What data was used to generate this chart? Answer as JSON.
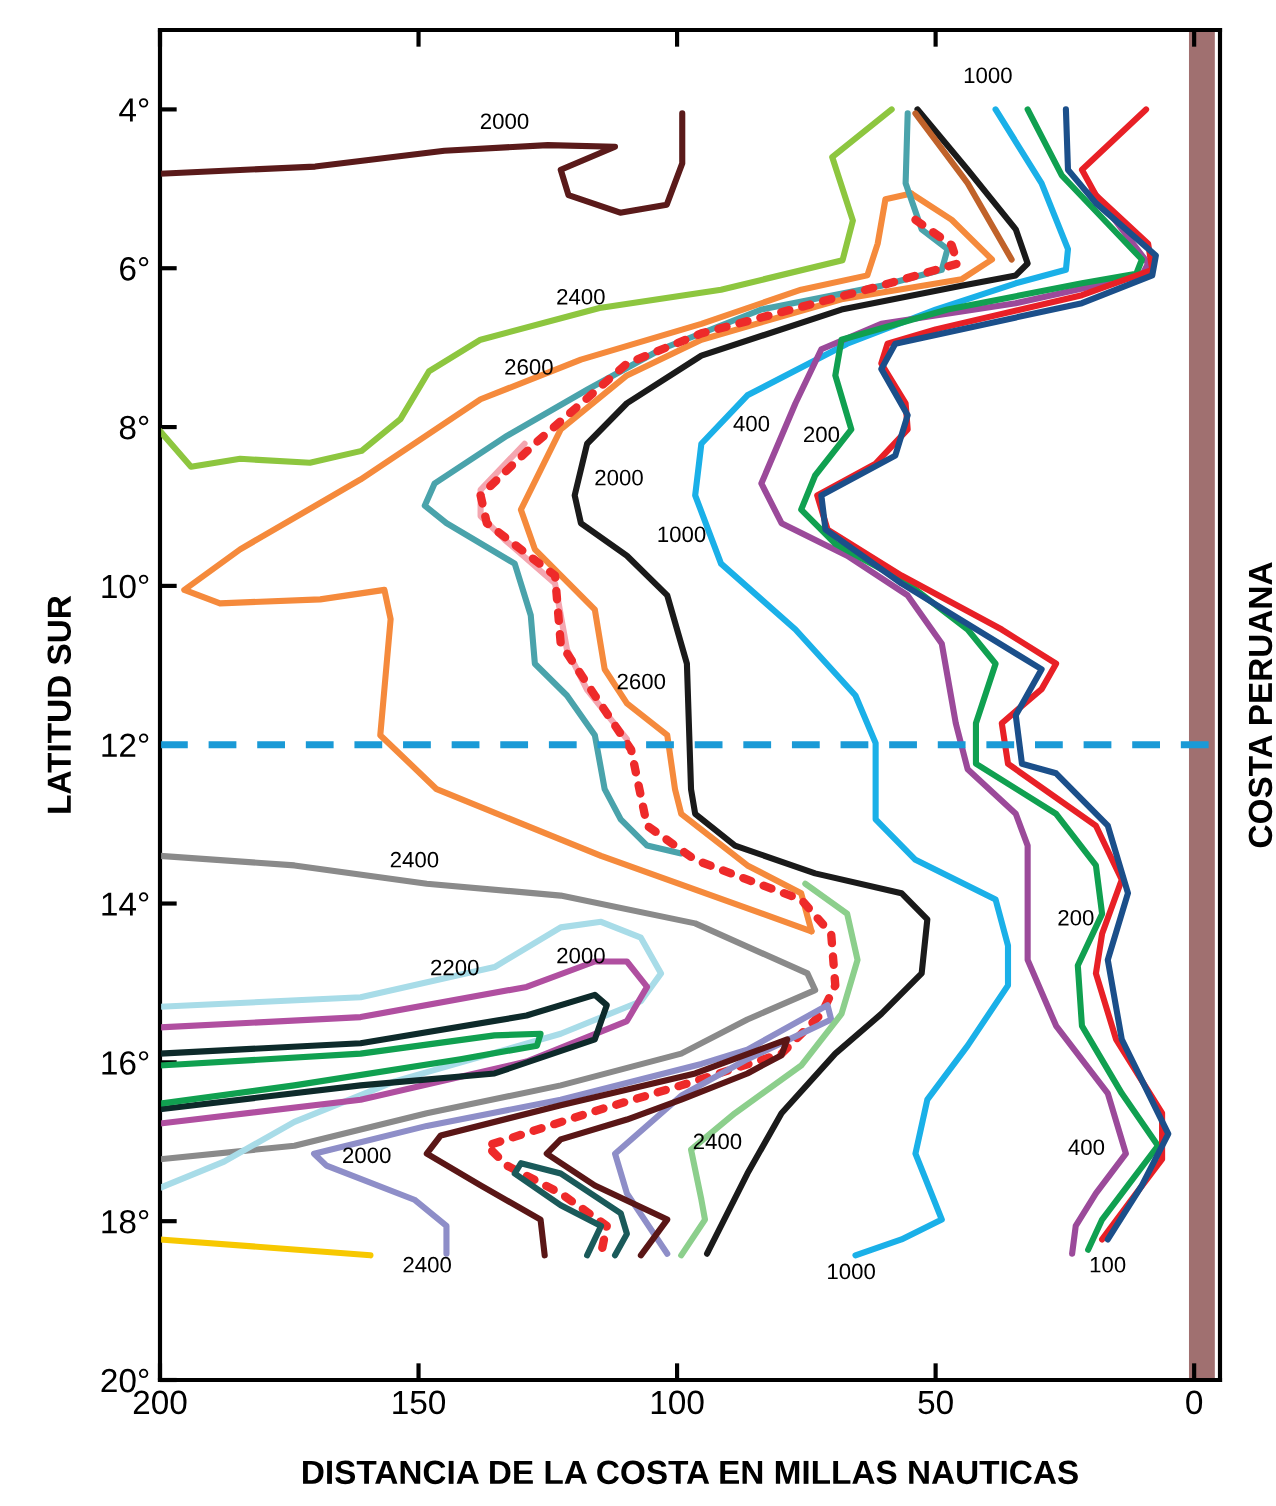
{
  "chart_data": {
    "type": "line",
    "xlabel": "DISTANCIA DE LA COSTA EN MILLAS NAUTICAS",
    "ylabel": "LATITUD SUR",
    "y2label": "COSTA PERUANA",
    "xlim": [
      200,
      -5
    ],
    "ylim": [
      20,
      3
    ],
    "xticks": [
      200,
      150,
      100,
      50,
      0
    ],
    "yticks": [
      {
        "value": 4,
        "label": "4°"
      },
      {
        "value": 6,
        "label": "6°"
      },
      {
        "value": 8,
        "label": "8°"
      },
      {
        "value": 10,
        "label": "10°"
      },
      {
        "value": 12,
        "label": "12°"
      },
      {
        "value": 14,
        "label": "14°"
      },
      {
        "value": 16,
        "label": "16°"
      },
      {
        "value": 18,
        "label": "18°"
      },
      {
        "value": 20,
        "label": "20°"
      }
    ],
    "grid": false,
    "legend": false,
    "bands": [
      {
        "axis": "x",
        "from": 1,
        "to": -4,
        "color": "#a07070"
      }
    ],
    "ref_lines": [
      {
        "axis": "y",
        "value": 12,
        "color": "#1a9ad6",
        "line_style": "dashed"
      }
    ],
    "series": [
      {
        "color": "#5a1a1a",
        "x": [
          200,
          170,
          145,
          125,
          112,
          122.5,
          121,
          111,
          102,
          99,
          99
        ],
        "values": [
          4.81,
          4.72,
          4.52,
          4.45,
          4.47,
          4.76,
          5.08,
          5.3,
          5.2,
          4.68,
          4.05
        ]
      },
      {
        "color": "#8dc63f",
        "x": [
          200,
          194,
          184.5,
          171,
          161,
          153.5,
          148,
          138,
          115,
          91.5,
          68,
          66,
          70,
          58.5
        ],
        "values": [
          8.05,
          8.5,
          8.4,
          8.45,
          8.3,
          7.9,
          7.3,
          6.9,
          6.5,
          6.27,
          5.9,
          5.4,
          4.6,
          4.0
        ]
      },
      {
        "color": "#f58a3c",
        "x": [
          74.0,
          76.0,
          86.4,
          99.2,
          100.4,
          101.9,
          109.7,
          114.0,
          115.9,
          127.5,
          130.2,
          122.5,
          109.7,
          95.3,
          68.2,
          45.0,
          39.1,
          46.9,
          54.7
        ],
        "values": [
          14.35,
          13.87,
          13.52,
          12.87,
          12.56,
          11.88,
          11.48,
          11.05,
          10.3,
          9.54,
          9.04,
          8.03,
          7.35,
          6.9,
          6.39,
          6.14,
          5.89,
          5.39,
          5.06
        ]
      },
      {
        "color": "#f58a3c",
        "x": [
          54.7,
          59.7,
          61.2,
          63.2,
          76.0,
          95.3,
          118.6,
          138.0,
          161.2,
          184.5,
          195.3,
          188.4,
          169.0,
          156.6,
          155.4,
          157.4,
          146.5,
          114.7,
          74.0
        ],
        "values": [
          5.06,
          5.13,
          5.69,
          6.09,
          6.27,
          6.7,
          7.15,
          7.65,
          8.66,
          9.54,
          10.05,
          10.22,
          10.17,
          10.05,
          10.42,
          11.88,
          12.56,
          13.4,
          14.35
        ]
      },
      {
        "color": "#4aa3ab",
        "x": [
          55.4,
          55.8,
          52.7,
          47.7,
          48.8,
          60.5,
          83.7,
          103.1,
          117.4,
          132.9,
          146.9,
          148.8,
          144.6,
          131.4,
          128.3,
          127.5,
          121.3,
          115.9,
          114.0,
          110.9,
          105.8,
          99.2
        ],
        "values": [
          4.05,
          4.93,
          5.51,
          5.76,
          6.02,
          6.22,
          6.52,
          7.02,
          7.53,
          8.11,
          8.71,
          8.99,
          9.21,
          9.72,
          10.37,
          10.98,
          11.38,
          11.88,
          12.56,
          12.94,
          13.27,
          13.37
        ]
      },
      {
        "color": "#f4a6b0",
        "x": [
          129.5,
          138.0,
          138.0,
          133.3,
          123.6,
          121.3,
          117.4,
          109.7
        ],
        "values": [
          8.21,
          8.79,
          9.12,
          9.42,
          9.97,
          10.8,
          11.31,
          11.93
        ]
      },
      {
        "color": "#1a1a1a",
        "x": [
          53.5,
          43.8,
          34.5,
          32.2,
          34.5,
          45.0,
          68.2,
          95.3,
          109.7,
          117.4,
          119.8,
          118.6,
          109.7,
          101.9,
          98.1,
          97.3,
          96.5,
          88.8,
          73.3,
          56.6,
          51.6,
          52.7,
          60.5,
          69.4,
          79.8,
          86.4,
          94.2
        ],
        "values": [
          4.0,
          4.76,
          5.51,
          5.94,
          6.09,
          6.22,
          6.52,
          7.1,
          7.7,
          8.21,
          8.86,
          9.21,
          9.62,
          10.12,
          10.98,
          12.56,
          12.87,
          13.27,
          13.62,
          13.87,
          14.2,
          14.88,
          15.39,
          15.89,
          16.64,
          17.4,
          18.41
        ]
      },
      {
        "color": "#c0622a",
        "x": [
          53.9,
          43.8,
          35.3
        ],
        "values": [
          4.05,
          4.93,
          5.89
        ]
      },
      {
        "color": "#1ab0e8",
        "x": [
          38.4,
          29.5,
          24.4,
          24.8,
          34.5,
          50.0,
          67.1,
          86.4,
          95.3,
          96.5,
          91.5,
          77.1,
          65.5,
          61.6,
          61.6,
          53.9,
          38.4,
          36.0,
          36.0,
          43.8,
          51.6,
          53.9,
          48.8,
          56.6,
          65.5
        ],
        "values": [
          4.0,
          4.93,
          5.76,
          6.02,
          6.19,
          6.52,
          6.95,
          7.6,
          8.21,
          8.86,
          9.72,
          10.55,
          11.38,
          11.98,
          12.94,
          13.45,
          13.95,
          14.53,
          15.03,
          15.79,
          16.47,
          17.15,
          17.98,
          18.23,
          18.43
        ]
      },
      {
        "color": "#9b4a9a",
        "x": [
          19.8,
          8.9,
          10.1,
          34.5,
          60.5,
          72.1,
          77.1,
          83.7,
          79.8,
          67.1,
          55.4,
          48.8,
          46.1,
          43.8,
          34.5,
          32.2,
          32.2,
          26.7,
          16.7,
          13.2,
          19.0,
          22.9,
          23.6
        ],
        "values": [
          5.01,
          5.94,
          6.09,
          6.44,
          6.7,
          7.02,
          7.7,
          8.71,
          9.21,
          9.62,
          10.12,
          10.73,
          11.73,
          12.31,
          12.87,
          13.27,
          14.71,
          15.54,
          16.39,
          17.15,
          17.65,
          18.06,
          18.41
        ]
      },
      {
        "color": "#10a050",
        "x": [
          32.2,
          25.6,
          16.7,
          10.1,
          11.2,
          21.7,
          47.7,
          68.2,
          69.4,
          66.3,
          73.3,
          76.0,
          69.4,
          55.4,
          43.8,
          38.4,
          42.2,
          42.2,
          26.7,
          19.0,
          17.8,
          22.5,
          21.7,
          14.0,
          7.0,
          12.8,
          17.8,
          20.5
        ],
        "values": [
          4.0,
          4.83,
          5.44,
          5.89,
          6.07,
          6.19,
          6.52,
          6.9,
          7.35,
          8.03,
          8.61,
          9.04,
          9.47,
          9.97,
          10.55,
          10.98,
          11.73,
          12.24,
          12.87,
          13.52,
          14.13,
          14.78,
          15.54,
          16.39,
          17.05,
          17.55,
          17.98,
          18.36
        ]
      },
      {
        "color": "#e82026",
        "x": [
          9.3,
          21.7,
          19.0,
          8.9,
          8.1,
          21.7,
          50.0,
          59.3,
          60.5,
          55.8,
          55.4,
          61.6,
          72.9,
          70.9,
          56.6,
          37.2,
          26.7,
          29.5,
          37.2,
          36.0,
          19.0,
          14.0,
          17.8,
          19.0,
          15.1,
          6.2,
          6.2,
          11.2,
          17.8
        ],
        "values": [
          4.0,
          4.76,
          5.08,
          5.69,
          6.02,
          6.34,
          6.77,
          6.95,
          7.2,
          7.7,
          8.03,
          8.46,
          8.86,
          9.29,
          9.87,
          10.55,
          10.98,
          11.3,
          11.73,
          12.24,
          13.02,
          13.7,
          14.38,
          14.88,
          15.71,
          16.64,
          17.22,
          17.65,
          18.23
        ]
      },
      {
        "color": "#1b4f8a",
        "x": [
          24.8,
          24.4,
          19.0,
          7.4,
          8.1,
          21.7,
          57.8,
          60.5,
          55.4,
          57.8,
          72.1,
          71.3,
          56.6,
          29.5,
          34.5,
          33.3,
          26.7,
          16.7,
          12.8,
          16.7,
          14.0,
          5.0,
          10.1,
          16.7
        ],
        "values": [
          4.0,
          4.76,
          5.18,
          5.84,
          6.09,
          6.44,
          6.95,
          7.27,
          7.85,
          8.36,
          8.86,
          9.29,
          9.97,
          11.05,
          11.63,
          12.24,
          12.36,
          13.02,
          13.87,
          14.71,
          15.71,
          16.9,
          17.55,
          18.23
        ]
      },
      {
        "color": "#ee2a2a",
        "line_style": "dotted",
        "x": [
          53.9,
          46.9,
          45.7,
          60.5,
          95.3,
          109.7,
          127.5,
          138.0,
          136.8,
          123.6,
          122.5,
          115.9,
          108.9,
          105.8,
          96.5,
          86.4,
          76.0,
          70.2,
          69.4,
          72.1,
          79.8,
          99.2,
          114.7,
          136.8,
          132.9,
          122.5,
          113.6,
          114.7
        ],
        "values": [
          5.39,
          5.71,
          5.94,
          6.22,
          6.82,
          7.2,
          8.21,
          8.86,
          9.21,
          9.87,
          10.73,
          11.38,
          12.06,
          13.02,
          13.45,
          13.7,
          13.95,
          14.38,
          15.03,
          15.39,
          15.89,
          16.29,
          16.59,
          17.05,
          17.3,
          17.65,
          18.06,
          18.41
        ]
      },
      {
        "color": "#8a8a8a",
        "x": [
          200,
          174.0,
          148.4,
          122.5,
          96.5,
          74.8,
          73.3,
          86.4,
          99.2,
          122.5,
          148.4,
          174.0,
          200
        ],
        "values": [
          13.4,
          13.52,
          13.75,
          13.9,
          14.25,
          14.88,
          15.09,
          15.46,
          15.89,
          16.29,
          16.64,
          17.05,
          17.22
        ]
      },
      {
        "color": "#a8dce8",
        "x": [
          200,
          161.2,
          135.3,
          122.5,
          114.7,
          107.0,
          103.1,
          107.0,
          122.5,
          154.6,
          174.0,
          187.6,
          200
        ],
        "values": [
          15.3,
          15.18,
          14.8,
          14.3,
          14.23,
          14.43,
          14.88,
          15.23,
          15.64,
          16.24,
          16.75,
          17.25,
          17.58
        ]
      },
      {
        "color": "#b04fa0",
        "x": [
          200,
          161.2,
          129.1,
          115.9,
          109.7,
          105.8,
          109.7,
          129.1,
          161.2,
          200
        ],
        "values": [
          15.56,
          15.43,
          15.05,
          14.73,
          14.73,
          15.05,
          15.48,
          15.99,
          16.47,
          16.77
        ]
      },
      {
        "color": "#0d2a2a",
        "x": [
          200,
          161.2,
          129.1,
          115.9,
          113.6,
          115.9,
          135.3,
          161.2,
          200
        ],
        "values": [
          15.89,
          15.76,
          15.41,
          15.15,
          15.28,
          15.71,
          16.14,
          16.29,
          16.59
        ]
      },
      {
        "color": "#10a050",
        "x": [
          200,
          161.2,
          135.3,
          126.4,
          127.1,
          141.9,
          174.0,
          200
        ],
        "values": [
          16.04,
          15.89,
          15.66,
          15.64,
          15.79,
          15.96,
          16.29,
          16.52
        ]
      },
      {
        "color": "#8e8ec8",
        "x": [
          144.6,
          144.6,
          150.8,
          167.8,
          170.2,
          148.4,
          122.5,
          95.3,
          86.4,
          70.9,
          70.2,
          86.4,
          99.2,
          112.0,
          109.7,
          101.9
        ],
        "values": [
          18.41,
          18.06,
          17.73,
          17.3,
          17.15,
          16.8,
          16.47,
          16.02,
          15.84,
          15.28,
          15.46,
          15.96,
          16.42,
          17.15,
          17.65,
          18.41
        ]
      },
      {
        "color": "#5a1616",
        "x": [
          125.6,
          126.4,
          138.0,
          148.4,
          145.7,
          122.5,
          96.5,
          78.7,
          79.8,
          86.4,
          99.2,
          109.7,
          122.5,
          125.2,
          115.9,
          101.9,
          107.0
        ],
        "values": [
          18.43,
          17.98,
          17.55,
          17.15,
          16.92,
          16.54,
          16.14,
          15.71,
          15.91,
          16.14,
          16.47,
          16.72,
          16.97,
          17.15,
          17.55,
          17.98,
          18.43
        ]
      },
      {
        "color": "#1a5a5a",
        "x": [
          117.4,
          114.7,
          122.5,
          131.4,
          130.2,
          122.5,
          110.9,
          109.7,
          112.0
        ],
        "values": [
          18.43,
          18.06,
          17.8,
          17.4,
          17.27,
          17.4,
          17.9,
          18.16,
          18.43
        ]
      },
      {
        "color": "#8ccf8c",
        "x": [
          75.2,
          67.1,
          65.1,
          68.2,
          76.0,
          88.8,
          97.3,
          95.3,
          94.6,
          99.2
        ],
        "values": [
          13.75,
          14.13,
          14.71,
          15.39,
          16.04,
          16.64,
          17.1,
          17.73,
          17.98,
          18.43
        ]
      },
      {
        "color": "#f7c800",
        "x": [
          200,
          159.3
        ],
        "values": [
          18.23,
          18.43
        ]
      }
    ],
    "annotations": [
      "2000",
      "2400",
      "2600",
      "2000",
      "1000",
      "2600",
      "400",
      "200",
      "1000",
      "2400",
      {
        "text": "2200",
        "x": 143.0,
        "y": 14.83
      },
      {
        "text": "2000",
        "x": 118.6,
        "y": 14.68
      },
      "2000",
      "2400",
      {
        "text": "2400",
        "x": 92.2,
        "y": 17.02
      },
      "1000",
      "200",
      "400",
      "100"
    ]
  }
}
